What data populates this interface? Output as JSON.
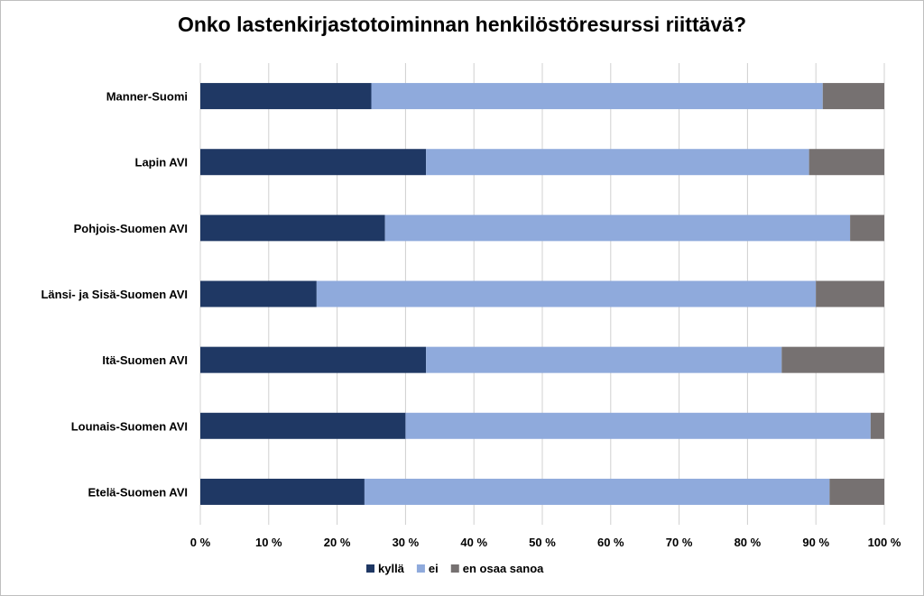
{
  "chart_data": {
    "type": "bar",
    "orientation": "horizontal",
    "stacked": true,
    "title": "Onko lastenkirjastotoiminnan henkilöstöresurssi riittävä?",
    "categories": [
      "Manner-Suomi",
      "Lapin AVI",
      "Pohjois-Suomen AVI",
      "Länsi- ja Sisä-Suomen AVI",
      "Itä-Suomen AVI",
      "Lounais-Suomen AVI",
      "Etelä-Suomen AVI"
    ],
    "series": [
      {
        "name": "kyllä",
        "color": "#1f3864",
        "values": [
          25,
          33,
          27,
          17,
          33,
          30,
          24
        ]
      },
      {
        "name": "ei",
        "color": "#8faadc",
        "values": [
          66,
          56,
          68,
          73,
          52,
          68,
          68
        ]
      },
      {
        "name": "en osaa sanoa",
        "color": "#767171",
        "values": [
          9,
          11,
          5,
          10,
          15,
          2,
          8
        ]
      }
    ],
    "xlim": [
      0,
      100
    ],
    "xticks": [
      "0 %",
      "10 %",
      "20 %",
      "30 %",
      "40 %",
      "50 %",
      "60 %",
      "70 %",
      "80 %",
      "90 %",
      "100 %"
    ],
    "grid": true,
    "legend_position": "bottom"
  }
}
